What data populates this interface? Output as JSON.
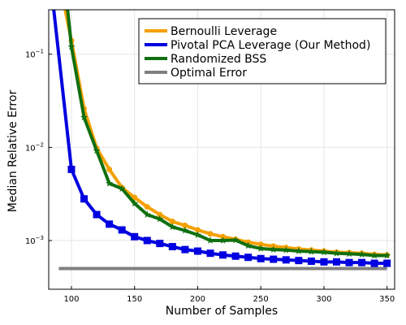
{
  "chart_data": {
    "type": "line",
    "xlabel": "Number of Samples",
    "ylabel": "Median Relative Error",
    "xlim": [
      82,
      356
    ],
    "ylim": [
      0.0003,
      0.3
    ],
    "yscale": "log",
    "x_ticks": [
      100,
      150,
      200,
      250,
      300,
      350
    ],
    "y_ticks": [
      {
        "value": 0.001,
        "base": "10",
        "exp": "−3"
      },
      {
        "value": 0.01,
        "base": "10",
        "exp": "−2"
      },
      {
        "value": 0.1,
        "base": "10",
        "exp": "−1"
      }
    ],
    "grid": true,
    "legend_position": "top-right",
    "series": [
      {
        "name": "Bernoulli Leverage",
        "color": "#f5a000",
        "marker": "circle",
        "x": [
          100,
          110,
          120,
          130,
          140,
          150,
          160,
          170,
          180,
          190,
          200,
          210,
          220,
          230,
          240,
          250,
          260,
          270,
          280,
          290,
          300,
          310,
          320,
          330,
          340,
          350
        ],
        "y": [
          0.14,
          0.026,
          0.0098,
          0.0058,
          0.0037,
          0.0029,
          0.0023,
          0.0019,
          0.0016,
          0.00145,
          0.0013,
          0.00118,
          0.0011,
          0.00103,
          0.00096,
          0.00091,
          0.00087,
          0.00084,
          0.00081,
          0.00079,
          0.00077,
          0.00075,
          0.00074,
          0.00073,
          0.00071,
          0.0007
        ],
        "lead": {
          "x": 95,
          "y": 0.3
        }
      },
      {
        "name": "Pivotal PCA Leverage (Our Method)",
        "color": "#0000e0",
        "marker": "square",
        "x": [
          100,
          110,
          120,
          130,
          140,
          150,
          160,
          170,
          180,
          190,
          200,
          210,
          220,
          230,
          240,
          250,
          260,
          270,
          280,
          290,
          300,
          310,
          320,
          330,
          340,
          350
        ],
        "y": [
          0.0058,
          0.0028,
          0.0019,
          0.0015,
          0.0013,
          0.0011,
          0.001,
          0.00093,
          0.00086,
          0.0008,
          0.00077,
          0.00073,
          0.0007,
          0.00068,
          0.00066,
          0.00064,
          0.00063,
          0.00062,
          0.00061,
          0.0006,
          0.00059,
          0.00059,
          0.00058,
          0.00058,
          0.00057,
          0.00057
        ],
        "lead": {
          "x": 86,
          "y": 0.3
        }
      },
      {
        "name": "Randomized BSS",
        "color": "#107010",
        "marker": "star",
        "x": [
          100,
          110,
          120,
          130,
          140,
          150,
          160,
          170,
          180,
          190,
          200,
          210,
          220,
          230,
          240,
          250,
          260,
          270,
          280,
          290,
          300,
          310,
          320,
          330,
          340,
          350
        ],
        "y": [
          0.12,
          0.021,
          0.0092,
          0.0041,
          0.0036,
          0.0025,
          0.0019,
          0.0017,
          0.0014,
          0.00128,
          0.00115,
          0.001,
          0.001,
          0.00101,
          0.00088,
          0.00082,
          0.0008,
          0.00079,
          0.00077,
          0.00076,
          0.00075,
          0.00073,
          0.00072,
          0.00071,
          0.00069,
          0.00069
        ],
        "lead": {
          "x": 97,
          "y": 0.3
        }
      },
      {
        "name": "Optimal Error",
        "color": "#808080",
        "marker": "none",
        "x": [
          90,
          350
        ],
        "y": [
          0.0005,
          0.0005
        ]
      }
    ]
  }
}
